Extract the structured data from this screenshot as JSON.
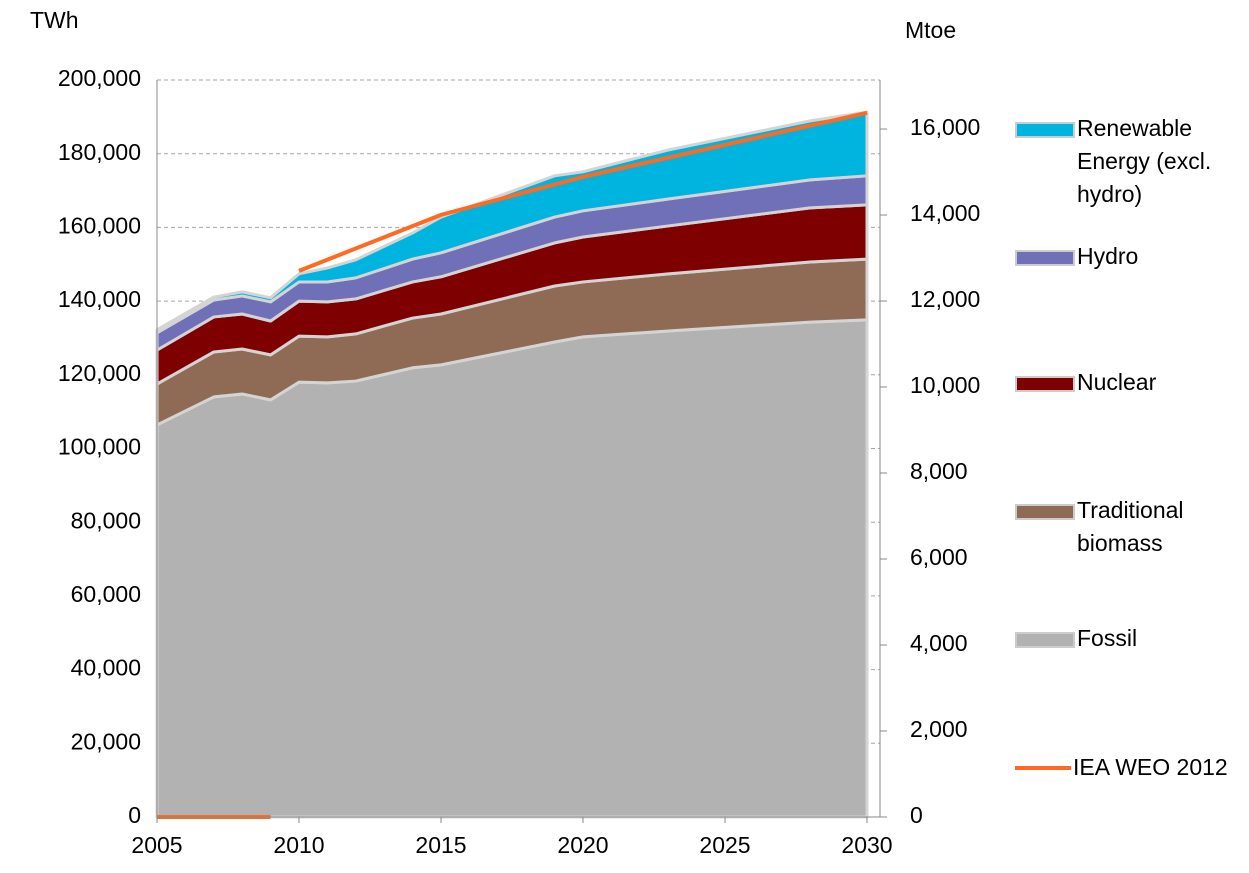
{
  "chart_data": {
    "type": "area",
    "stacked": true,
    "y_label": "TWh",
    "y2_label": "Mtoe",
    "x": [
      2005,
      2007,
      2008,
      2009,
      2010,
      2011,
      2012,
      2014,
      2015,
      2019,
      2020,
      2023,
      2028,
      2030
    ],
    "xlim": [
      2005,
      2030
    ],
    "xticks": [
      2005,
      2010,
      2015,
      2020,
      2025,
      2030
    ],
    "ylim": [
      0,
      200000
    ],
    "yticks": [
      0,
      {
        "value": 20000,
        "label": "20,000"
      },
      {
        "value": 40000,
        "label": "40,000"
      },
      {
        "value": 60000,
        "label": "60,000"
      },
      {
        "value": 80000,
        "label": "80,000"
      },
      {
        "value": 100000,
        "label": "100,000"
      },
      {
        "value": 120000,
        "label": "120,000"
      },
      {
        "value": 140000,
        "label": "140,000"
      },
      {
        "value": 160000,
        "label": "160,000"
      },
      {
        "value": 180000,
        "label": "180,000"
      },
      {
        "value": 200000,
        "label": "200,000"
      }
    ],
    "y2lim": [
      0,
      17140
    ],
    "y2ticks": [
      0,
      {
        "value": 2000,
        "label": "2,000"
      },
      {
        "value": 4000,
        "label": "4,000"
      },
      {
        "value": 6000,
        "label": "6,000"
      },
      {
        "value": 8000,
        "label": "8,000"
      },
      {
        "value": 10000,
        "label": "10,000"
      },
      {
        "value": 12000,
        "label": "12,000"
      },
      {
        "value": 14000,
        "label": "14,000"
      },
      {
        "value": 16000,
        "label": "16,000"
      }
    ],
    "grid": true,
    "legend": "right",
    "series": [
      {
        "name": "Fossil",
        "color": "#b2b2b2",
        "values": [
          106400,
          114000,
          114800,
          113200,
          118000,
          117800,
          118300,
          121900,
          122700,
          128900,
          130300,
          131900,
          134300,
          134900
        ]
      },
      {
        "name": "Traditional biomass",
        "color": "#8f6a55",
        "values": [
          11100,
          12200,
          12200,
          12200,
          12500,
          12500,
          12800,
          13500,
          13800,
          15200,
          14900,
          15500,
          16300,
          16500
        ]
      },
      {
        "name": "Nuclear",
        "color": "#7f0000",
        "values": [
          9200,
          9500,
          9500,
          9200,
          9500,
          9500,
          9500,
          9800,
          10100,
          11700,
          12200,
          13000,
          14700,
          14700
        ]
      },
      {
        "name": "Hydro",
        "color": "#7070b8",
        "values": [
          4700,
          4600,
          4900,
          5200,
          5200,
          5400,
          5700,
          6200,
          6500,
          7000,
          7100,
          7300,
          7600,
          7900
        ]
      },
      {
        "name": "Renewable Energy (excl. hydro)",
        "color": "#00b4e0",
        "values": [
          800,
          800,
          1100,
          1100,
          2200,
          3800,
          4900,
          7100,
          9700,
          11200,
          10600,
          13300,
          16000,
          17300
        ]
      }
    ],
    "lines": [
      {
        "name": "IEA WEO 2012",
        "color": "#ff6a20",
        "x": [
          2005,
          2009,
          null,
          2010,
          2015,
          2020,
          2030
        ],
        "values": [
          0,
          0,
          null,
          148200,
          163400,
          173700,
          191100
        ]
      }
    ]
  }
}
